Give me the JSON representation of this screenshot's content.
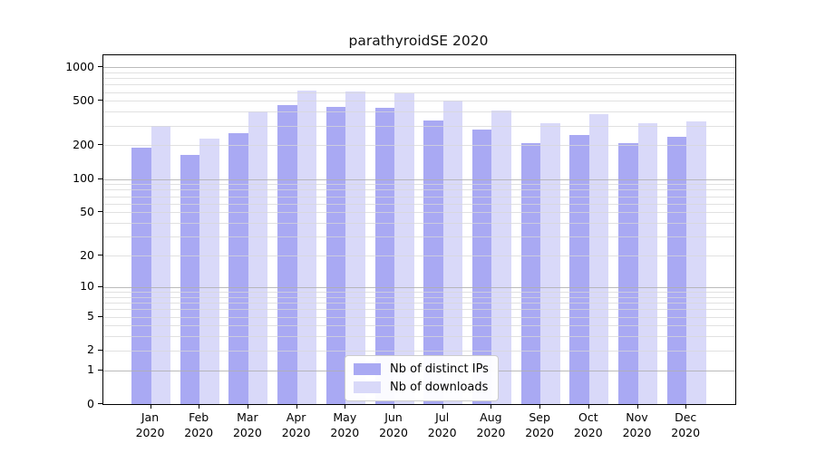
{
  "title": "parathyroidSE 2020",
  "legend": {
    "items": [
      {
        "label": "Nb of distinct IPs",
        "color": "#a9a9f3"
      },
      {
        "label": "Nb of downloads",
        "color": "#d9d9f9"
      }
    ]
  },
  "y_axis": {
    "scale": "log1p",
    "ticks": [
      {
        "label": "1000",
        "value": 1000
      },
      {
        "label": "500",
        "value": 500
      },
      {
        "label": "200",
        "value": 200
      },
      {
        "label": "100",
        "value": 100
      },
      {
        "label": "50",
        "value": 50
      },
      {
        "label": "20",
        "value": 20
      },
      {
        "label": "10",
        "value": 10
      },
      {
        "label": "5",
        "value": 5
      },
      {
        "label": "2",
        "value": 2
      },
      {
        "label": "1",
        "value": 1
      },
      {
        "label": "0",
        "value": 0
      }
    ]
  },
  "chart_data": {
    "type": "bar",
    "title": "parathyroidSE 2020",
    "categories": [
      "Jan 2020",
      "Feb 2020",
      "Mar 2020",
      "Apr 2020",
      "May 2020",
      "Jun 2020",
      "Jul 2020",
      "Aug 2020",
      "Sep 2020",
      "Oct 2020",
      "Nov 2020",
      "Dec 2020"
    ],
    "series": [
      {
        "name": "Nb of distinct IPs",
        "color": "#a9a9f3",
        "values": [
          190,
          165,
          255,
          458,
          444,
          430,
          335,
          275,
          211,
          248,
          210,
          239
        ]
      },
      {
        "name": "Nb of downloads",
        "color": "#d9d9f9",
        "values": [
          300,
          232,
          400,
          615,
          605,
          585,
          505,
          410,
          316,
          382,
          317,
          329
        ]
      }
    ],
    "xlabel": "",
    "ylabel": "",
    "yscale": "log1p",
    "ylim": [
      0,
      1280
    ],
    "y_ticks": [
      0,
      1,
      2,
      5,
      10,
      20,
      50,
      100,
      200,
      500,
      1000
    ],
    "grid": true,
    "grid_minor": true,
    "legend_position": "lower-center-inside"
  }
}
